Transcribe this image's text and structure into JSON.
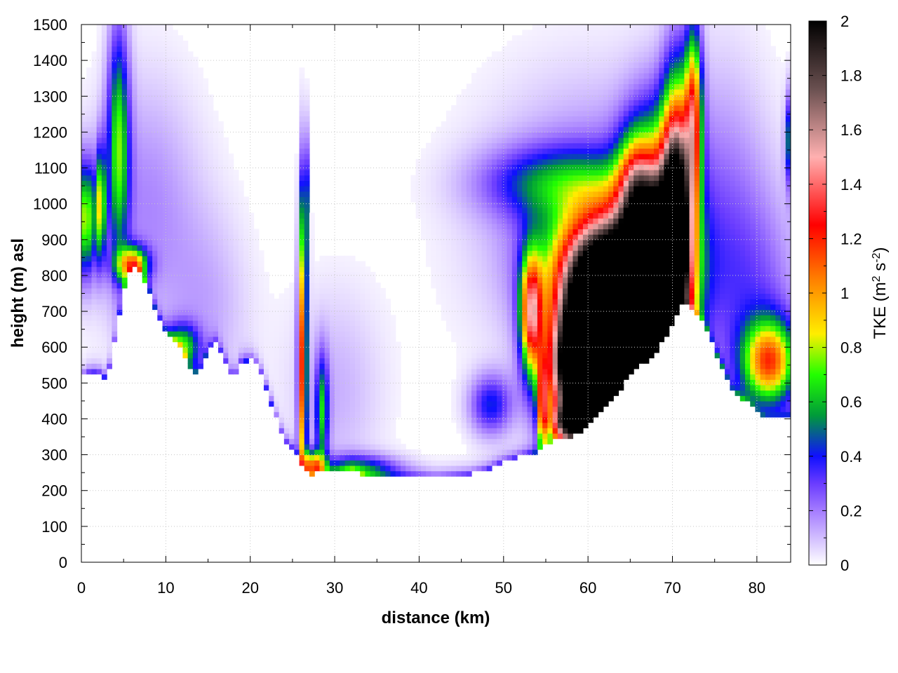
{
  "chart_data": {
    "type": "heatmap",
    "xlabel": "distance (km)",
    "ylabel": "height (m) asl",
    "xlim": [
      0,
      84
    ],
    "ylim": [
      0,
      1500
    ],
    "x_ticks": [
      "0",
      "10",
      "20",
      "30",
      "40",
      "50",
      "60",
      "70",
      "80"
    ],
    "y_ticks": [
      "0",
      "100",
      "200",
      "300",
      "400",
      "500",
      "600",
      "700",
      "800",
      "900",
      "1000",
      "1100",
      "1200",
      "1300",
      "1400",
      "1500"
    ],
    "grid": true,
    "colorbar": {
      "label_prefix": "TKE (m",
      "label_sup1": "2",
      "label_mid": " s",
      "label_sup2": "-2",
      "label_suffix": ")",
      "range": [
        0,
        2
      ],
      "ticks": [
        "0",
        "0.2",
        "0.4",
        "0.6",
        "0.8",
        "1",
        "1.2",
        "1.4",
        "1.6",
        "1.8",
        "2"
      ],
      "colors": [
        {
          "v": 0.0,
          "c": "#ffffff"
        },
        {
          "v": 0.2,
          "c": "#a47cff"
        },
        {
          "v": 0.3,
          "c": "#6a3cff"
        },
        {
          "v": 0.4,
          "c": "#1010ff"
        },
        {
          "v": 0.55,
          "c": "#009a3a"
        },
        {
          "v": 0.7,
          "c": "#22ff00"
        },
        {
          "v": 0.85,
          "c": "#ffee00"
        },
        {
          "v": 1.05,
          "c": "#ff8000"
        },
        {
          "v": 1.25,
          "c": "#ff0000"
        },
        {
          "v": 1.5,
          "c": "#ffb0b0"
        },
        {
          "v": 1.75,
          "c": "#6a5050"
        },
        {
          "v": 2.0,
          "c": "#000000"
        }
      ]
    },
    "terrain": [
      [
        0,
        515
      ],
      [
        1,
        530
      ],
      [
        2,
        530
      ],
      [
        2.6,
        515
      ],
      [
        3.2,
        530
      ],
      [
        4,
        620
      ],
      [
        5,
        760
      ],
      [
        6,
        830
      ],
      [
        7,
        815
      ],
      [
        8,
        760
      ],
      [
        9,
        690
      ],
      [
        10,
        640
      ],
      [
        11,
        620
      ],
      [
        12,
        590
      ],
      [
        13,
        530
      ],
      [
        14,
        528
      ],
      [
        15,
        590
      ],
      [
        16,
        610
      ],
      [
        17,
        560
      ],
      [
        18,
        505
      ],
      [
        19,
        560
      ],
      [
        20,
        565
      ],
      [
        21,
        545
      ],
      [
        22,
        480
      ],
      [
        23,
        405
      ],
      [
        24,
        340
      ],
      [
        25,
        315
      ],
      [
        26,
        275
      ],
      [
        27,
        236
      ],
      [
        28,
        250
      ],
      [
        30,
        250
      ],
      [
        32,
        258
      ],
      [
        34,
        240
      ],
      [
        36,
        238
      ],
      [
        38,
        238
      ],
      [
        40,
        238
      ],
      [
        42,
        235
      ],
      [
        44,
        240
      ],
      [
        46,
        245
      ],
      [
        48,
        258
      ],
      [
        50,
        280
      ],
      [
        52,
        295
      ],
      [
        54,
        308
      ],
      [
        55,
        325
      ],
      [
        56,
        340
      ],
      [
        57,
        345
      ],
      [
        58,
        350
      ],
      [
        59,
        360
      ],
      [
        60,
        390
      ],
      [
        61,
        415
      ],
      [
        62,
        440
      ],
      [
        63,
        465
      ],
      [
        64,
        490
      ],
      [
        65,
        520
      ],
      [
        66,
        548
      ],
      [
        67,
        555
      ],
      [
        68,
        580
      ],
      [
        69,
        620
      ],
      [
        70,
        670
      ],
      [
        71,
        715
      ],
      [
        72,
        720
      ],
      [
        73,
        690
      ],
      [
        74,
        650
      ],
      [
        75,
        590
      ],
      [
        76,
        540
      ],
      [
        77,
        480
      ],
      [
        78,
        462
      ],
      [
        79,
        445
      ],
      [
        80,
        415
      ],
      [
        81,
        398
      ],
      [
        82,
        398
      ],
      [
        83,
        402
      ],
      [
        84,
        408
      ]
    ],
    "features": [
      {
        "x": 0.5,
        "y": 960,
        "sx": 0.9,
        "sy": 110,
        "v": 0.75
      },
      {
        "x": 2.3,
        "y": 1000,
        "sx": 0.4,
        "sy": 110,
        "v": 0.7
      },
      {
        "x": 4.4,
        "y": 1170,
        "sx": 0.9,
        "sy": 230,
        "v": 0.65
      },
      {
        "x": 6,
        "y": 830,
        "sx": 1.3,
        "sy": 35,
        "v": 0.9
      },
      {
        "x": 7.5,
        "y": 1000,
        "sx": 4.5,
        "sy": 250,
        "v": 0.18
      },
      {
        "x": 12,
        "y": 600,
        "sx": 1.4,
        "sy": 45,
        "v": 0.6
      },
      {
        "x": 15,
        "y": 700,
        "sx": 3.5,
        "sy": 200,
        "v": 0.12
      },
      {
        "x": 26.2,
        "y": 560,
        "sx": 0.35,
        "sy": 280,
        "v": 1.15
      },
      {
        "x": 26.5,
        "y": 990,
        "sx": 0.3,
        "sy": 140,
        "v": 0.45
      },
      {
        "x": 28.5,
        "y": 420,
        "sx": 0.55,
        "sy": 110,
        "v": 0.55
      },
      {
        "x": 27.4,
        "y": 270,
        "sx": 0.9,
        "sy": 28,
        "v": 0.9
      },
      {
        "x": 33,
        "y": 260,
        "sx": 3.2,
        "sy": 28,
        "v": 0.45
      },
      {
        "x": 30,
        "y": 480,
        "sx": 4,
        "sy": 200,
        "v": 0.12
      },
      {
        "x": 48.5,
        "y": 440,
        "sx": 1.8,
        "sy": 60,
        "v": 0.4
      },
      {
        "x": 53.3,
        "y": 700,
        "sx": 0.9,
        "sy": 110,
        "v": 1.15
      },
      {
        "x": 54.6,
        "y": 430,
        "sx": 0.4,
        "sy": 90,
        "v": 0.85
      },
      {
        "x": 57.5,
        "y": 390,
        "sx": 1.4,
        "sy": 35,
        "v": 1.0
      },
      {
        "x": 62,
        "y": 640,
        "sx": 3.6,
        "sy": 170,
        "v": 2.5
      },
      {
        "x": 60,
        "y": 520,
        "sx": 3,
        "sy": 120,
        "v": 2.2
      },
      {
        "x": 68,
        "y": 800,
        "sx": 2.5,
        "sy": 230,
        "v": 2.3
      },
      {
        "x": 70.5,
        "y": 1000,
        "sx": 1.2,
        "sy": 230,
        "v": 1.6
      },
      {
        "x": 72.5,
        "y": 1250,
        "sx": 0.7,
        "sy": 170,
        "v": 1.0
      },
      {
        "x": 63,
        "y": 820,
        "sx": 5,
        "sy": 120,
        "v": 1.2
      },
      {
        "x": 66.5,
        "y": 640,
        "sx": 0.9,
        "sy": 70,
        "v": 0.75
      },
      {
        "x": 65.5,
        "y": 1050,
        "sx": 1.4,
        "sy": 100,
        "v": 0.55
      },
      {
        "x": 56,
        "y": 1060,
        "sx": 6,
        "sy": 70,
        "v": 0.4
      },
      {
        "x": 61,
        "y": 950,
        "sx": 9,
        "sy": 260,
        "v": 0.25
      },
      {
        "x": 81.5,
        "y": 560,
        "sx": 2.2,
        "sy": 80,
        "v": 1.0
      },
      {
        "x": 80,
        "y": 700,
        "sx": 4,
        "sy": 220,
        "v": 0.22
      },
      {
        "x": 83.7,
        "y": 1180,
        "sx": 0.3,
        "sy": 90,
        "v": 0.45
      },
      {
        "x": 76,
        "y": 1000,
        "sx": 4,
        "sy": 300,
        "v": 0.15
      }
    ]
  }
}
